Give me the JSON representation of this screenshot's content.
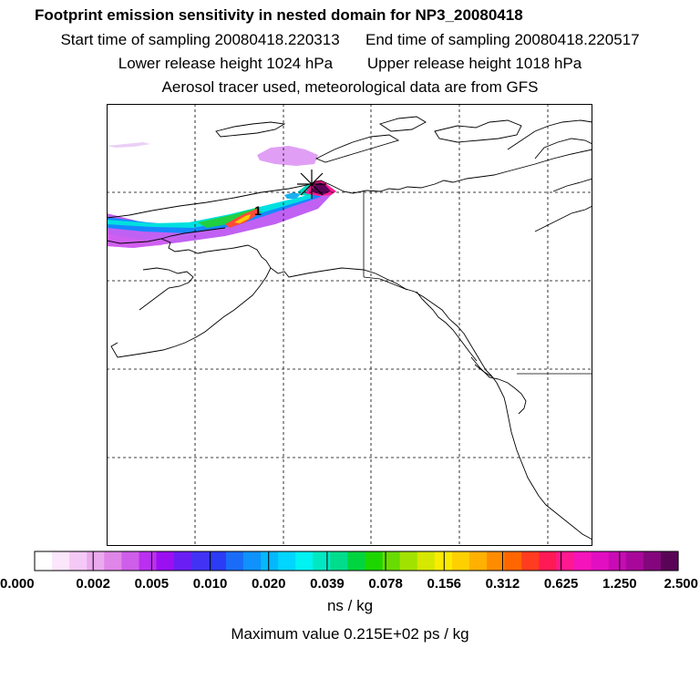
{
  "header": {
    "title": "Footprint emission sensitivity in nested domain for NP3_20080418",
    "start_label": "Start time of sampling 20080418.220313",
    "end_label": "End time of sampling 20080418.220517",
    "lower_label": "Lower release height 1024 hPa",
    "upper_label": "Upper release height 1018 hPa",
    "tracer_line": "Aerosol tracer used, meteorological data are from GFS"
  },
  "map": {
    "plume_marker": "1",
    "release_symbol": "asterisk-icon"
  },
  "colorbar": {
    "colors": [
      "#ffffff",
      "#fbe6fb",
      "#f5c9f5",
      "#eba9ee",
      "#df86e8",
      "#cf5eea",
      "#bb2ff0",
      "#9b10f2",
      "#6b1ef4",
      "#4232f4",
      "#2b3bf6",
      "#1a6cf8",
      "#0f92fb",
      "#04b8fd",
      "#00d6ff",
      "#00f2f2",
      "#00e8c2",
      "#00dd8c",
      "#00d53f",
      "#1dd600",
      "#68dc00",
      "#a2e200",
      "#d6e800",
      "#fbeb00",
      "#ffd000",
      "#ffb000",
      "#ff8c00",
      "#ff6600",
      "#ff3c1f",
      "#ff1a55",
      "#ff1990",
      "#f514bb",
      "#e20fc2",
      "#c80bb4",
      "#a8089a",
      "#84067c",
      "#5a0458"
    ],
    "tick_labels": [
      "0.000",
      "0.002",
      "0.005",
      "0.010",
      "0.020",
      "0.039",
      "0.078",
      "0.156",
      "0.312",
      "0.625",
      "1.250",
      "2.500"
    ],
    "units": "ns / kg",
    "max_label": "Maximum value  0.215E+02 ps / kg"
  }
}
